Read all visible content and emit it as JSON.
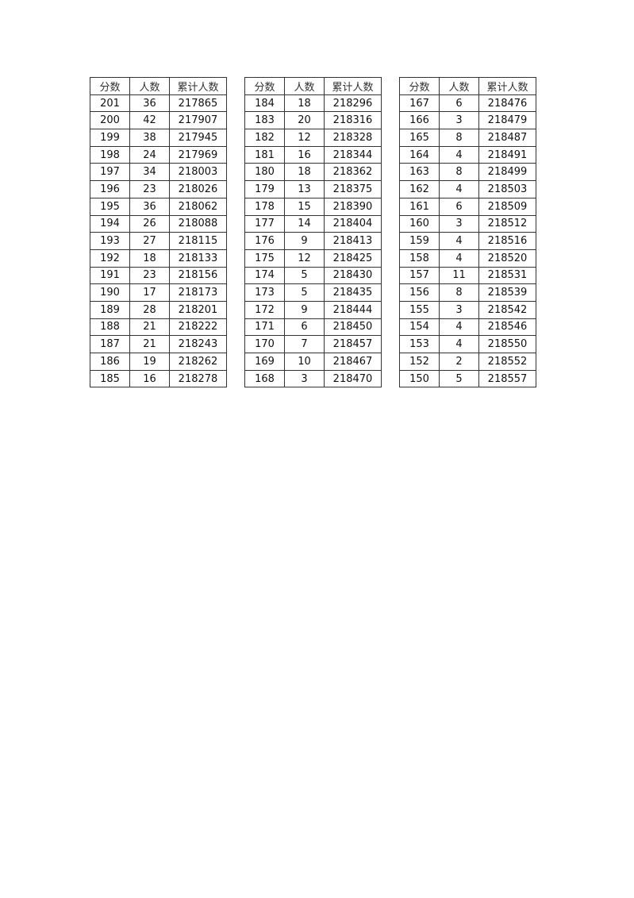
{
  "headers": [
    "分数",
    "人数",
    "累计人数"
  ],
  "tables": [
    {
      "rows": [
        [
          "201",
          "36",
          "217865"
        ],
        [
          "200",
          "42",
          "217907"
        ],
        [
          "199",
          "38",
          "217945"
        ],
        [
          "198",
          "24",
          "217969"
        ],
        [
          "197",
          "34",
          "218003"
        ],
        [
          "196",
          "23",
          "218026"
        ],
        [
          "195",
          "36",
          "218062"
        ],
        [
          "194",
          "26",
          "218088"
        ],
        [
          "193",
          "27",
          "218115"
        ],
        [
          "192",
          "18",
          "218133"
        ],
        [
          "191",
          "23",
          "218156"
        ],
        [
          "190",
          "17",
          "218173"
        ],
        [
          "189",
          "28",
          "218201"
        ],
        [
          "188",
          "21",
          "218222"
        ],
        [
          "187",
          "21",
          "218243"
        ],
        [
          "186",
          "19",
          "218262"
        ],
        [
          "185",
          "16",
          "218278"
        ]
      ]
    },
    {
      "rows": [
        [
          "184",
          "18",
          "218296"
        ],
        [
          "183",
          "20",
          "218316"
        ],
        [
          "182",
          "12",
          "218328"
        ],
        [
          "181",
          "16",
          "218344"
        ],
        [
          "180",
          "18",
          "218362"
        ],
        [
          "179",
          "13",
          "218375"
        ],
        [
          "178",
          "15",
          "218390"
        ],
        [
          "177",
          "14",
          "218404"
        ],
        [
          "176",
          "9",
          "218413"
        ],
        [
          "175",
          "12",
          "218425"
        ],
        [
          "174",
          "5",
          "218430"
        ],
        [
          "173",
          "5",
          "218435"
        ],
        [
          "172",
          "9",
          "218444"
        ],
        [
          "171",
          "6",
          "218450"
        ],
        [
          "170",
          "7",
          "218457"
        ],
        [
          "169",
          "10",
          "218467"
        ],
        [
          "168",
          "3",
          "218470"
        ]
      ]
    },
    {
      "rows": [
        [
          "167",
          "6",
          "218476"
        ],
        [
          "166",
          "3",
          "218479"
        ],
        [
          "165",
          "8",
          "218487"
        ],
        [
          "164",
          "4",
          "218491"
        ],
        [
          "163",
          "8",
          "218499"
        ],
        [
          "162",
          "4",
          "218503"
        ],
        [
          "161",
          "6",
          "218509"
        ],
        [
          "160",
          "3",
          "218512"
        ],
        [
          "159",
          "4",
          "218516"
        ],
        [
          "158",
          "4",
          "218520"
        ],
        [
          "157",
          "11",
          "218531"
        ],
        [
          "156",
          "8",
          "218539"
        ],
        [
          "155",
          "3",
          "218542"
        ],
        [
          "154",
          "4",
          "218546"
        ],
        [
          "153",
          "4",
          "218550"
        ],
        [
          "152",
          "2",
          "218552"
        ],
        [
          "150",
          "5",
          "218557"
        ]
      ]
    }
  ]
}
